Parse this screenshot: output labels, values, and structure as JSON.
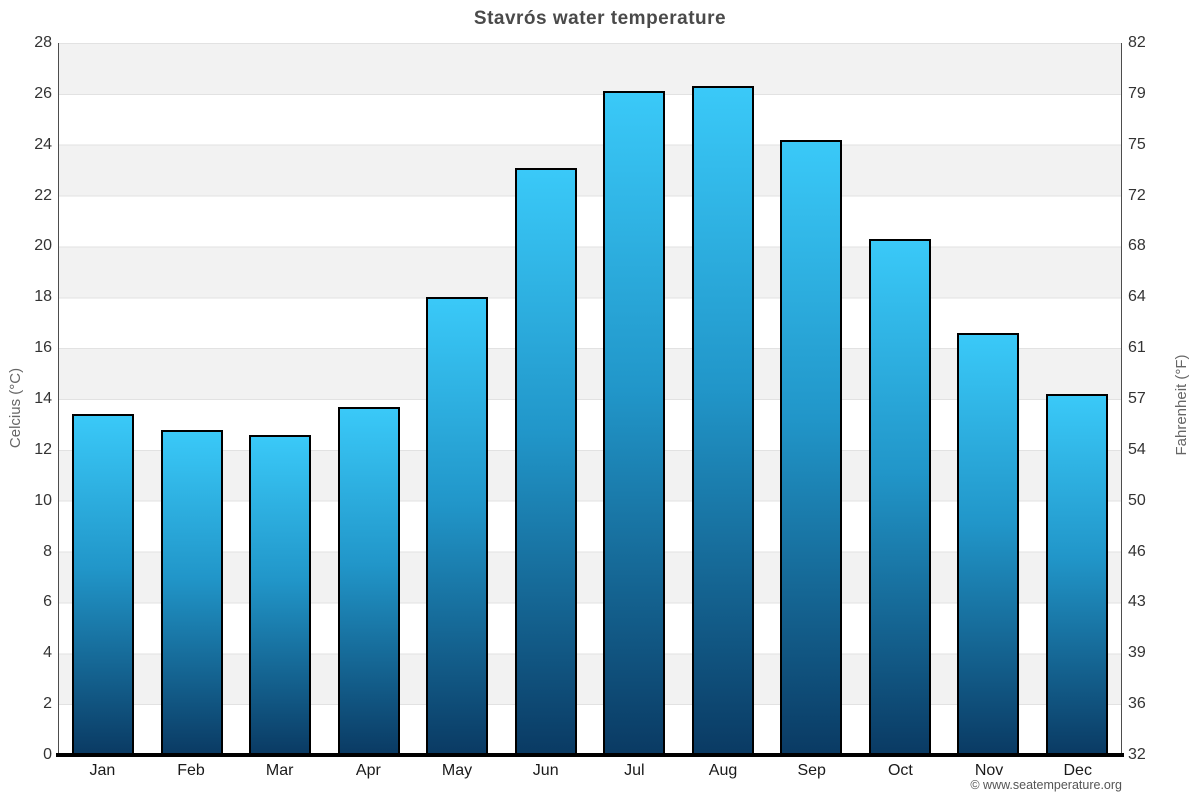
{
  "page": {
    "title": "Stavrós water temperature",
    "attribution": "© www.seatemperature.org"
  },
  "axes": {
    "left": {
      "title": "Celcius (°C)",
      "ticks": [
        0,
        2,
        4,
        6,
        8,
        10,
        12,
        14,
        16,
        18,
        20,
        22,
        24,
        26,
        28
      ]
    },
    "right": {
      "title": "Fahrenheit (°F)",
      "ticks": [
        32,
        36,
        39,
        43,
        46,
        50,
        54,
        57,
        61,
        64,
        68,
        72,
        75,
        79,
        82
      ]
    }
  },
  "chart_data": {
    "type": "bar",
    "title": "Stavrós water temperature",
    "categories": [
      "Jan",
      "Feb",
      "Mar",
      "Apr",
      "May",
      "Jun",
      "Jul",
      "Aug",
      "Sep",
      "Oct",
      "Nov",
      "Dec"
    ],
    "values": [
      13.4,
      12.8,
      12.6,
      13.7,
      18.0,
      23.1,
      26.1,
      26.3,
      24.2,
      20.3,
      16.6,
      14.2
    ],
    "unit": "°C",
    "ylabel": "Celcius (°C)",
    "ylabel_right": "Fahrenheit (°F)",
    "ylim": [
      0,
      28
    ],
    "y_tick_step": 2,
    "legend": "none",
    "grid": "horizontal-bands-alternating",
    "colors": {
      "bar_top": "#3ac9f8",
      "bar_mid": "#2196c9",
      "bar_bottom": "#0a3a63",
      "bar_border": "#000000",
      "band_gray": "#f2f2f2",
      "band_white": "#ffffff",
      "gridline": "#e2e2e2",
      "axis_line": "#4d4d4d",
      "baseline": "#000000",
      "title_text": "#4a4a4a",
      "tick_text": "#333333",
      "axis_title_text": "#666666",
      "footer_text": "#555555"
    }
  }
}
